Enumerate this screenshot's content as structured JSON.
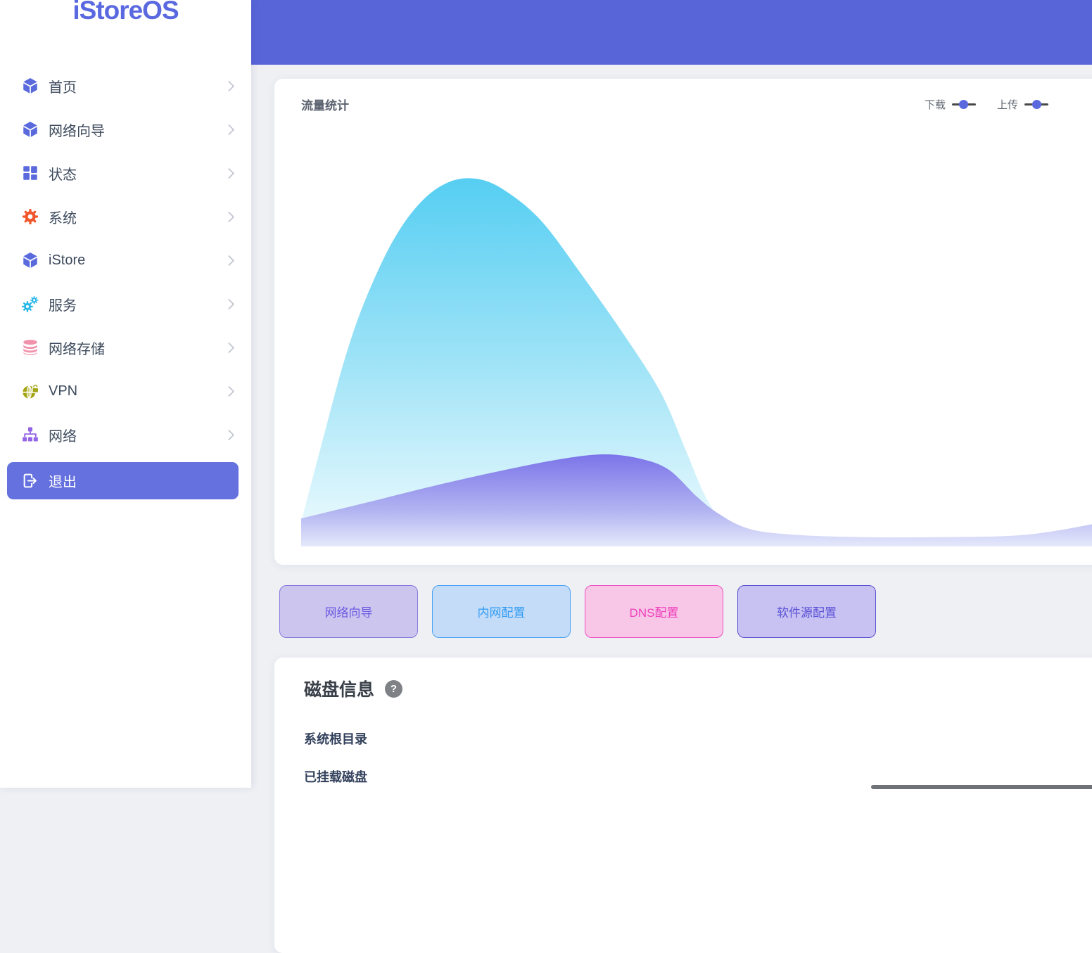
{
  "brand": {
    "logo_text": "iStoreOS",
    "logo_color": "#5a69e0"
  },
  "header": {
    "background_color": "#5765d8"
  },
  "sidebar": {
    "items": [
      {
        "label": "首页",
        "icon": "cube-icon",
        "icon_color": "#5a6add"
      },
      {
        "label": "网络向导",
        "icon": "cube-icon",
        "icon_color": "#5a6add"
      },
      {
        "label": "状态",
        "icon": "dashboard-grid-icon",
        "icon_color": "#5a6add"
      },
      {
        "label": "系统",
        "icon": "gear-icon",
        "icon_color": "#f1562b"
      },
      {
        "label": "iStore",
        "icon": "cube-icon",
        "icon_color": "#5a6add"
      },
      {
        "label": "服务",
        "icon": "gears-icon",
        "icon_color": "#28b7e9"
      },
      {
        "label": "网络存储",
        "icon": "database-icon",
        "icon_color": "#f291ac"
      },
      {
        "label": "VPN",
        "icon": "globe-lock-icon",
        "icon_color": "#a4a513"
      },
      {
        "label": "网络",
        "icon": "sitemap-icon",
        "icon_color": "#9465e6"
      }
    ],
    "logout": {
      "label": "退出",
      "background_color": "#6471de"
    }
  },
  "traffic_card": {
    "title": "流量统计",
    "legend": [
      {
        "label": "下载"
      },
      {
        "label": "上传"
      }
    ],
    "legend_marker_dot_color": "#5b69df",
    "legend_marker_line_color": "#47484a"
  },
  "quick_buttons": [
    {
      "label": "网络向导",
      "background": "#ccc6ee",
      "border": "#8677dd",
      "text_color": "#6c59e3"
    },
    {
      "label": "内网配置",
      "background": "#c5dcf8",
      "border": "#4aa2f5",
      "text_color": "#2f9bf4"
    },
    {
      "label": "DNS配置",
      "background": "#f8c6e6",
      "border": "#ee4fc1",
      "text_color": "#f03fbc"
    },
    {
      "label": "软件源配置",
      "background": "#c7c2f2",
      "border": "#594fd3",
      "text_color": "#5b50d6"
    }
  ],
  "disk_card": {
    "title": "磁盘信息",
    "help_badge": "?",
    "sections": [
      {
        "label": "系统根目录"
      },
      {
        "label": "已挂载磁盘"
      }
    ]
  },
  "chart_data": {
    "type": "area",
    "title": "流量统计",
    "legend": [
      "下载",
      "上传"
    ],
    "legend_position": "top-right",
    "axes_visible": false,
    "grid": false,
    "value_unit": "percent_of_plot_height",
    "series": [
      {
        "name": "下载",
        "color_top": "#56cef2",
        "color_bottom": "#f0fbfe",
        "points": [
          [
            0,
            5.3
          ],
          [
            0.028,
            25
          ],
          [
            0.054,
            42.7
          ],
          [
            0.08,
            56.5
          ],
          [
            0.115,
            70.2
          ],
          [
            0.15,
            79
          ],
          [
            0.185,
            83.4
          ],
          [
            0.22,
            83.9
          ],
          [
            0.254,
            81.1
          ],
          [
            0.298,
            74.2
          ],
          [
            0.35,
            61.3
          ],
          [
            0.402,
            47.6
          ],
          [
            0.446,
            34.7
          ],
          [
            0.476,
            21.8
          ],
          [
            0.498,
            12.1
          ],
          [
            0.52,
            5.6
          ],
          [
            0.546,
            2.1
          ],
          [
            0.585,
            0.8
          ],
          [
            0.672,
            0.5
          ],
          [
            0.803,
            0.5
          ],
          [
            1,
            0.5
          ]
        ]
      },
      {
        "name": "上传",
        "color_top": "#7b74e9",
        "color_bottom": "#e6e9fb",
        "points": [
          [
            0,
            6.1
          ],
          [
            0.08,
            9.7
          ],
          [
            0.167,
            13.7
          ],
          [
            0.254,
            17.3
          ],
          [
            0.324,
            19.8
          ],
          [
            0.376,
            20.8
          ],
          [
            0.42,
            19.8
          ],
          [
            0.455,
            17.3
          ],
          [
            0.49,
            11.1
          ],
          [
            0.516,
            7.3
          ],
          [
            0.55,
            4.0
          ],
          [
            0.594,
            2.6
          ],
          [
            0.672,
            1.9
          ],
          [
            0.786,
            1.8
          ],
          [
            0.899,
            2.4
          ],
          [
            1,
            5.5
          ]
        ]
      }
    ]
  }
}
